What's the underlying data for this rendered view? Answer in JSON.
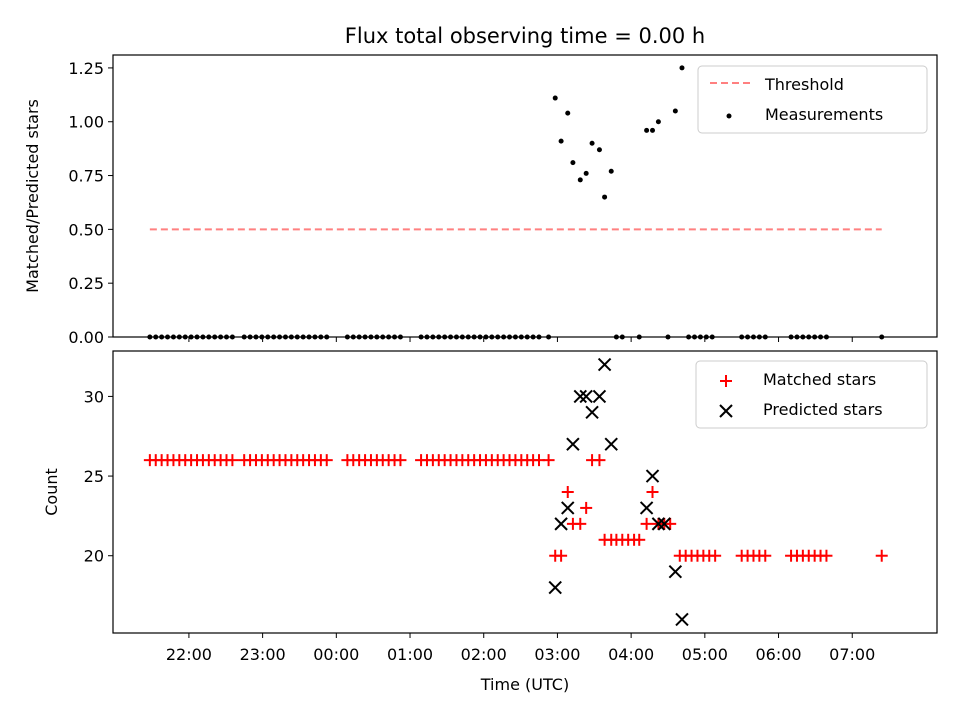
{
  "chart_data": {
    "title": "Flux total observing time = 0.00 h",
    "xlabel": "Time (UTC)",
    "xticks": [
      {
        "value": 22,
        "label": "22:00"
      },
      {
        "value": 23,
        "label": "23:00"
      },
      {
        "value": 24,
        "label": "00:00"
      },
      {
        "value": 25,
        "label": "01:00"
      },
      {
        "value": 26,
        "label": "02:00"
      },
      {
        "value": 27,
        "label": "03:00"
      },
      {
        "value": 28,
        "label": "04:00"
      },
      {
        "value": 29,
        "label": "05:00"
      },
      {
        "value": 30,
        "label": "06:00"
      },
      {
        "value": 31,
        "label": "07:00"
      }
    ],
    "xlim": [
      20.97,
      32.15
    ],
    "panels": [
      {
        "id": "ratio",
        "type": "scatter",
        "ylabel": "Matched/Predicted stars",
        "ylim": [
          0,
          1.31
        ],
        "yticks": [
          {
            "value": 0,
            "label": "0.00"
          },
          {
            "value": 0.25,
            "label": "0.25"
          },
          {
            "value": 0.5,
            "label": "0.50"
          },
          {
            "value": 0.75,
            "label": "0.75"
          },
          {
            "value": 1.0,
            "label": "1.00"
          },
          {
            "value": 1.25,
            "label": "1.25"
          }
        ],
        "legend_position": "top-right",
        "threshold": {
          "name": "Threshold",
          "value": 0.5,
          "x_range": [
            21.47,
            31.4
          ],
          "color": "#ff8080"
        },
        "measurements": {
          "name": "Measurements",
          "color": "#000000",
          "points": [
            [
              21.47,
              0
            ],
            [
              21.55,
              0
            ],
            [
              21.63,
              0
            ],
            [
              21.71,
              0
            ],
            [
              21.79,
              0
            ],
            [
              21.87,
              0
            ],
            [
              21.95,
              0
            ],
            [
              22.03,
              0
            ],
            [
              22.11,
              0
            ],
            [
              22.19,
              0
            ],
            [
              22.27,
              0
            ],
            [
              22.35,
              0
            ],
            [
              22.43,
              0
            ],
            [
              22.51,
              0
            ],
            [
              22.59,
              0
            ],
            [
              22.75,
              0
            ],
            [
              22.83,
              0
            ],
            [
              22.91,
              0
            ],
            [
              22.99,
              0
            ],
            [
              23.07,
              0
            ],
            [
              23.15,
              0
            ],
            [
              23.23,
              0
            ],
            [
              23.31,
              0
            ],
            [
              23.39,
              0
            ],
            [
              23.47,
              0
            ],
            [
              23.55,
              0
            ],
            [
              23.63,
              0
            ],
            [
              23.71,
              0
            ],
            [
              23.79,
              0
            ],
            [
              23.87,
              0
            ],
            [
              24.15,
              0
            ],
            [
              24.23,
              0
            ],
            [
              24.31,
              0
            ],
            [
              24.39,
              0
            ],
            [
              24.47,
              0
            ],
            [
              24.55,
              0
            ],
            [
              24.63,
              0
            ],
            [
              24.71,
              0
            ],
            [
              24.79,
              0
            ],
            [
              24.87,
              0
            ],
            [
              25.15,
              0
            ],
            [
              25.23,
              0
            ],
            [
              25.31,
              0
            ],
            [
              25.39,
              0
            ],
            [
              25.47,
              0
            ],
            [
              25.55,
              0
            ],
            [
              25.63,
              0
            ],
            [
              25.71,
              0
            ],
            [
              25.79,
              0
            ],
            [
              25.87,
              0
            ],
            [
              25.95,
              0
            ],
            [
              26.03,
              0
            ],
            [
              26.11,
              0
            ],
            [
              26.19,
              0
            ],
            [
              26.27,
              0
            ],
            [
              26.35,
              0
            ],
            [
              26.43,
              0
            ],
            [
              26.51,
              0
            ],
            [
              26.59,
              0
            ],
            [
              26.67,
              0
            ],
            [
              26.75,
              0
            ],
            [
              26.88,
              0
            ],
            [
              26.97,
              1.11
            ],
            [
              27.05,
              0.91
            ],
            [
              27.14,
              1.04
            ],
            [
              27.21,
              0.81
            ],
            [
              27.31,
              0.73
            ],
            [
              27.39,
              0.76
            ],
            [
              27.47,
              0.9
            ],
            [
              27.57,
              0.87
            ],
            [
              27.64,
              0.65
            ],
            [
              27.73,
              0.77
            ],
            [
              27.8,
              0
            ],
            [
              27.88,
              0
            ],
            [
              28.11,
              0
            ],
            [
              28.21,
              0.96
            ],
            [
              28.29,
              0.96
            ],
            [
              28.37,
              1.0
            ],
            [
              28.5,
              0
            ],
            [
              28.6,
              1.05
            ],
            [
              28.69,
              1.25
            ],
            [
              28.78,
              0
            ],
            [
              28.86,
              0
            ],
            [
              28.94,
              0
            ],
            [
              29.02,
              0
            ],
            [
              29.1,
              0
            ],
            [
              29.5,
              0
            ],
            [
              29.58,
              0
            ],
            [
              29.66,
              0
            ],
            [
              29.74,
              0
            ],
            [
              29.82,
              0
            ],
            [
              30.17,
              0
            ],
            [
              30.25,
              0
            ],
            [
              30.33,
              0
            ],
            [
              30.41,
              0
            ],
            [
              30.49,
              0
            ],
            [
              30.57,
              0
            ],
            [
              30.65,
              0
            ],
            [
              31.4,
              0
            ]
          ]
        }
      },
      {
        "id": "counts",
        "type": "scatter",
        "ylabel": "Count",
        "ylim": [
          15.15,
          32.85
        ],
        "yticks": [
          {
            "value": 20,
            "label": "20"
          },
          {
            "value": 25,
            "label": "25"
          },
          {
            "value": 30,
            "label": "30"
          }
        ],
        "legend_position": "top-right",
        "series": [
          {
            "name": "Matched stars",
            "marker": "+",
            "color": "#ff0000",
            "points": [
              [
                21.47,
                26
              ],
              [
                21.55,
                26
              ],
              [
                21.63,
                26
              ],
              [
                21.71,
                26
              ],
              [
                21.79,
                26
              ],
              [
                21.87,
                26
              ],
              [
                21.95,
                26
              ],
              [
                22.03,
                26
              ],
              [
                22.11,
                26
              ],
              [
                22.19,
                26
              ],
              [
                22.27,
                26
              ],
              [
                22.35,
                26
              ],
              [
                22.43,
                26
              ],
              [
                22.51,
                26
              ],
              [
                22.59,
                26
              ],
              [
                22.75,
                26
              ],
              [
                22.83,
                26
              ],
              [
                22.91,
                26
              ],
              [
                22.99,
                26
              ],
              [
                23.07,
                26
              ],
              [
                23.15,
                26
              ],
              [
                23.23,
                26
              ],
              [
                23.31,
                26
              ],
              [
                23.39,
                26
              ],
              [
                23.47,
                26
              ],
              [
                23.55,
                26
              ],
              [
                23.63,
                26
              ],
              [
                23.71,
                26
              ],
              [
                23.79,
                26
              ],
              [
                23.87,
                26
              ],
              [
                24.15,
                26
              ],
              [
                24.23,
                26
              ],
              [
                24.31,
                26
              ],
              [
                24.39,
                26
              ],
              [
                24.47,
                26
              ],
              [
                24.55,
                26
              ],
              [
                24.63,
                26
              ],
              [
                24.71,
                26
              ],
              [
                24.79,
                26
              ],
              [
                24.87,
                26
              ],
              [
                25.15,
                26
              ],
              [
                25.23,
                26
              ],
              [
                25.31,
                26
              ],
              [
                25.39,
                26
              ],
              [
                25.47,
                26
              ],
              [
                25.55,
                26
              ],
              [
                25.63,
                26
              ],
              [
                25.71,
                26
              ],
              [
                25.79,
                26
              ],
              [
                25.87,
                26
              ],
              [
                25.95,
                26
              ],
              [
                26.03,
                26
              ],
              [
                26.11,
                26
              ],
              [
                26.19,
                26
              ],
              [
                26.27,
                26
              ],
              [
                26.35,
                26
              ],
              [
                26.43,
                26
              ],
              [
                26.51,
                26
              ],
              [
                26.59,
                26
              ],
              [
                26.67,
                26
              ],
              [
                26.75,
                26
              ],
              [
                26.88,
                26
              ],
              [
                26.97,
                20
              ],
              [
                27.05,
                20
              ],
              [
                27.14,
                24
              ],
              [
                27.21,
                22
              ],
              [
                27.31,
                22
              ],
              [
                27.39,
                23
              ],
              [
                27.47,
                26
              ],
              [
                27.57,
                26
              ],
              [
                27.64,
                21
              ],
              [
                27.73,
                21
              ],
              [
                27.8,
                21
              ],
              [
                27.88,
                21
              ],
              [
                27.96,
                21
              ],
              [
                28.04,
                21
              ],
              [
                28.11,
                21
              ],
              [
                28.21,
                22
              ],
              [
                28.29,
                24
              ],
              [
                28.37,
                22
              ],
              [
                28.45,
                22
              ],
              [
                28.53,
                22
              ],
              [
                28.66,
                20
              ],
              [
                28.74,
                20
              ],
              [
                28.82,
                20
              ],
              [
                28.9,
                20
              ],
              [
                28.98,
                20
              ],
              [
                29.06,
                20
              ],
              [
                29.14,
                20
              ],
              [
                29.5,
                20
              ],
              [
                29.58,
                20
              ],
              [
                29.66,
                20
              ],
              [
                29.74,
                20
              ],
              [
                29.82,
                20
              ],
              [
                30.17,
                20
              ],
              [
                30.25,
                20
              ],
              [
                30.33,
                20
              ],
              [
                30.41,
                20
              ],
              [
                30.49,
                20
              ],
              [
                30.57,
                20
              ],
              [
                30.65,
                20
              ],
              [
                31.4,
                20
              ]
            ]
          },
          {
            "name": "Predicted stars",
            "marker": "x",
            "color": "#000000",
            "points": [
              [
                26.97,
                18
              ],
              [
                27.05,
                22
              ],
              [
                27.14,
                23
              ],
              [
                27.21,
                27
              ],
              [
                27.31,
                30
              ],
              [
                27.39,
                30
              ],
              [
                27.47,
                29
              ],
              [
                27.57,
                30
              ],
              [
                27.64,
                32
              ],
              [
                27.73,
                27
              ],
              [
                28.21,
                23
              ],
              [
                28.29,
                25
              ],
              [
                28.37,
                22
              ],
              [
                28.45,
                22
              ],
              [
                28.6,
                19
              ],
              [
                28.69,
                16
              ]
            ]
          }
        ]
      }
    ]
  }
}
